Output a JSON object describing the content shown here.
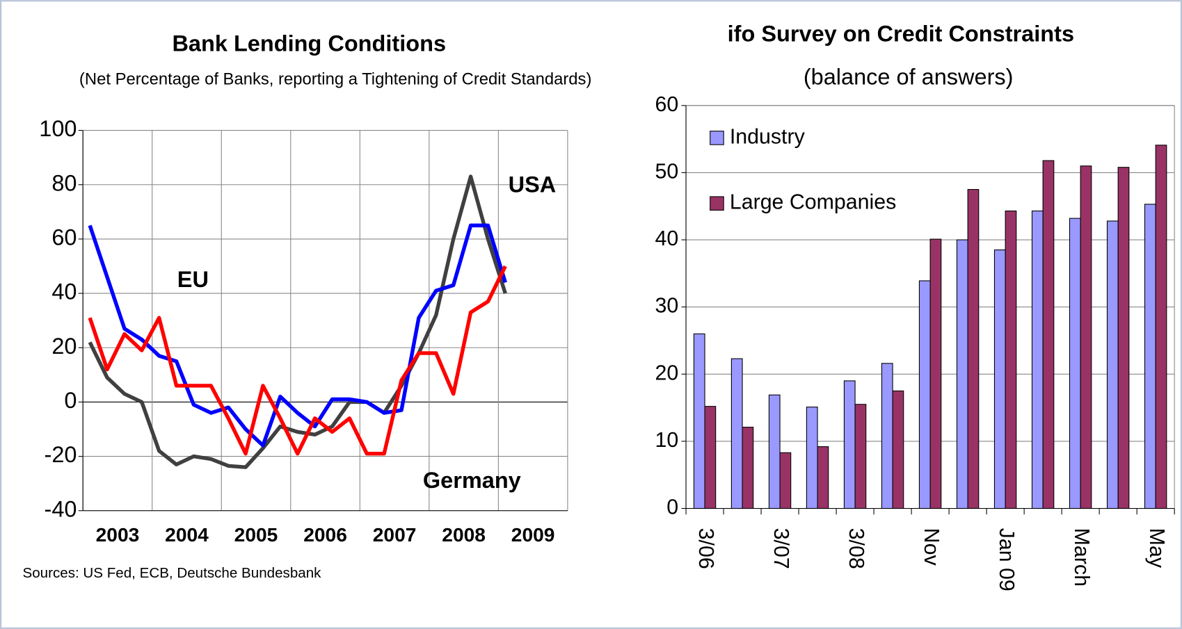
{
  "chart_data": [
    {
      "type": "line",
      "title": "Bank Lending Conditions",
      "subtitle": "(Net Percentage of Banks, reporting a Tightening of Credit Standards)",
      "source": "Sources: US Fed, ECB, Deutsche Bundesbank",
      "x": [
        2003.1,
        2003.35,
        2003.6,
        2003.85,
        2004.1,
        2004.35,
        2004.6,
        2004.85,
        2005.1,
        2005.35,
        2005.6,
        2005.85,
        2006.1,
        2006.35,
        2006.6,
        2006.85,
        2007.1,
        2007.35,
        2007.6,
        2007.85,
        2008.1,
        2008.35,
        2008.6,
        2008.85,
        2009.1
      ],
      "series": [
        {
          "name": "USA",
          "color": "#404040",
          "values": [
            22,
            9,
            3,
            0,
            -18,
            -23,
            -20,
            -21,
            -23.5,
            -24,
            -17,
            -9,
            -11,
            -12,
            -9,
            0,
            0,
            -4,
            6,
            18,
            32,
            60,
            83,
            60,
            40
          ]
        },
        {
          "name": "EU",
          "color": "#0000ff",
          "values": [
            65,
            46,
            27,
            23,
            17,
            15,
            -1,
            -4,
            -2,
            -10,
            -16,
            2,
            -4,
            -9,
            1,
            1,
            0,
            -4,
            -3,
            31,
            41,
            43,
            65,
            65,
            44
          ]
        },
        {
          "name": "Germany",
          "color": "#ff0000",
          "values": [
            31,
            12,
            25,
            19,
            31,
            6,
            6,
            6,
            -6,
            -19,
            6,
            -6,
            -19,
            -6,
            -11,
            -6,
            -19,
            -19,
            8,
            18,
            18,
            3,
            33,
            37,
            50
          ]
        }
      ],
      "xlim": [
        2003,
        2010
      ],
      "xticks": [
        {
          "value": 2003.5,
          "label": "2003"
        },
        {
          "value": 2004.5,
          "label": "2004"
        },
        {
          "value": 2005.5,
          "label": "2005"
        },
        {
          "value": 2006.5,
          "label": "2006"
        },
        {
          "value": 2007.5,
          "label": "2007"
        },
        {
          "value": 2008.5,
          "label": "2008"
        },
        {
          "value": 2009.5,
          "label": "2009"
        }
      ],
      "ylim": [
        -40,
        100
      ],
      "yticks": [
        -40,
        -20,
        0,
        20,
        40,
        60,
        80,
        100
      ],
      "grid": true
    },
    {
      "type": "bar",
      "title": "ifo Survey on Credit Constraints",
      "subtitle": "(balance of answers)",
      "categories": [
        "3/06",
        null,
        "3/07",
        null,
        "3/08",
        null,
        "Nov",
        null,
        "Jan 09",
        null,
        "March",
        null,
        "May"
      ],
      "series": [
        {
          "name": "Industry",
          "color": "#9999ff",
          "values": [
            26,
            22.3,
            16.9,
            15.1,
            19,
            21.6,
            33.9,
            40,
            38.5,
            44.3,
            43.2,
            42.8,
            45.3
          ]
        },
        {
          "name": "Large Companies",
          "color": "#993366",
          "values": [
            15.2,
            12.1,
            8.3,
            9.2,
            15.5,
            17.5,
            40.1,
            47.5,
            44.3,
            51.8,
            51,
            50.8,
            54.1
          ]
        }
      ],
      "ylim": [
        0,
        60
      ],
      "yticks": [
        0,
        10,
        20,
        30,
        40,
        50,
        60
      ],
      "grid": true,
      "legend": "top-left"
    }
  ]
}
